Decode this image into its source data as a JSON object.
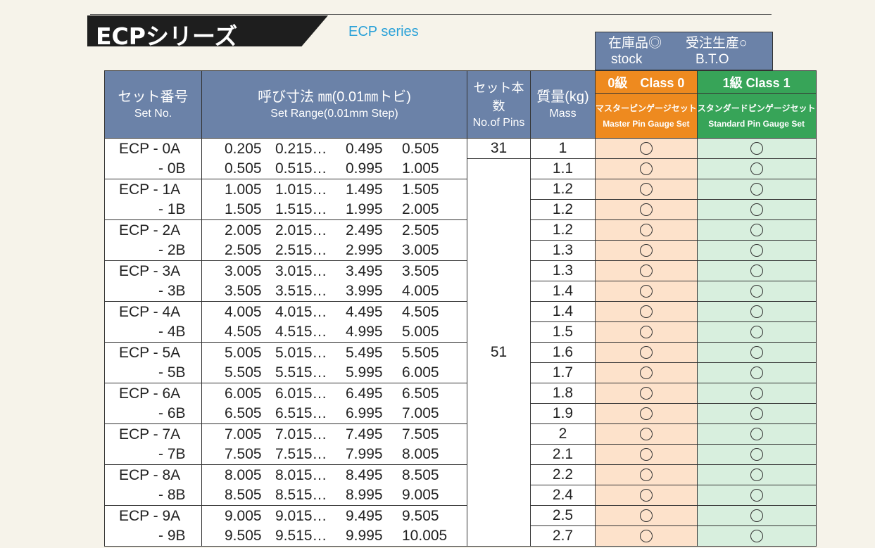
{
  "header": {
    "title": "ECPシリーズ",
    "subtitle": "ECP series"
  },
  "stock_box": {
    "stock_ja": "在庫品◎",
    "stock_en": "stock",
    "bto_ja": "受注生産○",
    "bto_en": "B.T.O"
  },
  "table": {
    "columns": {
      "set_no_ja": "セット番号",
      "set_no_en": "Set No.",
      "range_ja": "呼び寸法 ㎜(0.01㎜トビ)",
      "range_en": "Set Range(0.01mm Step)",
      "pins_ja": "セット本数",
      "pins_en": "No.of Pins",
      "mass_ja": "質量(kg)",
      "mass_en": "Mass",
      "class0": "0級　Class 0",
      "class0_ja": "マスターピンゲージセット",
      "class0_en": "Master Pin Gauge Set",
      "class1": "1級 Class 1",
      "class1_ja": "スタンダードピンゲージセット",
      "class1_en": "Standard Pin Gauge Set"
    },
    "groups": [
      {
        "a": "ECP  - 0A",
        "b": "- 0B",
        "ra": [
          "0.205",
          "0.215…",
          "0.495",
          "0.505"
        ],
        "rb": [
          "0.505",
          "0.515…",
          "0.995",
          "1.005"
        ]
      },
      {
        "a": "ECP  - 1A",
        "b": "- 1B",
        "ra": [
          "1.005",
          "1.015…",
          "1.495",
          "1.505"
        ],
        "rb": [
          "1.505",
          "1.515…",
          "1.995",
          "2.005"
        ]
      },
      {
        "a": "ECP  - 2A",
        "b": "- 2B",
        "ra": [
          "2.005",
          "2.015…",
          "2.495",
          "2.505"
        ],
        "rb": [
          "2.505",
          "2.515…",
          "2.995",
          "3.005"
        ]
      },
      {
        "a": "ECP  - 3A",
        "b": "- 3B",
        "ra": [
          "3.005",
          "3.015…",
          "3.495",
          "3.505"
        ],
        "rb": [
          "3.505",
          "3.515…",
          "3.995",
          "4.005"
        ]
      },
      {
        "a": "ECP  - 4A",
        "b": "- 4B",
        "ra": [
          "4.005",
          "4.015…",
          "4.495",
          "4.505"
        ],
        "rb": [
          "4.505",
          "4.515…",
          "4.995",
          "5.005"
        ]
      },
      {
        "a": "ECP  - 5A",
        "b": "- 5B",
        "ra": [
          "5.005",
          "5.015…",
          "5.495",
          "5.505"
        ],
        "rb": [
          "5.505",
          "5.515…",
          "5.995",
          "6.005"
        ]
      },
      {
        "a": "ECP  - 6A",
        "b": "- 6B",
        "ra": [
          "6.005",
          "6.015…",
          "6.495",
          "6.505"
        ],
        "rb": [
          "6.505",
          "6.515…",
          "6.995",
          "7.005"
        ]
      },
      {
        "a": "ECP  - 7A",
        "b": "- 7B",
        "ra": [
          "7.005",
          "7.015…",
          "7.495",
          "7.505"
        ],
        "rb": [
          "7.505",
          "7.515…",
          "7.995",
          "8.005"
        ]
      },
      {
        "a": "ECP  - 8A",
        "b": "- 8B",
        "ra": [
          "8.005",
          "8.015…",
          "8.495",
          "8.505"
        ],
        "rb": [
          "8.505",
          "8.515…",
          "8.995",
          "9.005"
        ]
      },
      {
        "a": "ECP  - 9A",
        "b": "- 9B",
        "ra": [
          "9.005",
          "9.015…",
          "9.495",
          "9.505"
        ],
        "rb": [
          "9.505",
          "9.515…",
          "9.995",
          "10.005"
        ]
      }
    ],
    "pins": [
      "31",
      "51"
    ],
    "mass": [
      "1",
      "1.1",
      "1.2",
      "1.2",
      "1.2",
      "1.3",
      "1.3",
      "1.4",
      "1.4",
      "1.5",
      "1.6",
      "1.7",
      "1.8",
      "1.9",
      "2",
      "2.1",
      "2.2",
      "2.4",
      "2.5",
      "2.7"
    ],
    "availability_mark": "○"
  }
}
